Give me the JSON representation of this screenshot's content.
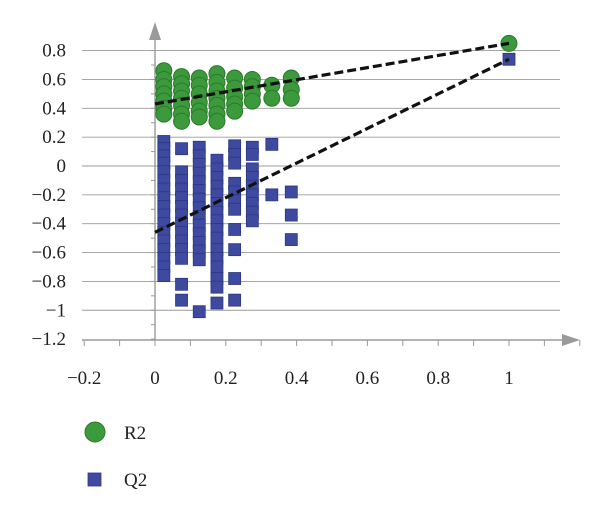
{
  "chart_data": {
    "type": "scatter",
    "title": "",
    "xlabel": "",
    "ylabel": "",
    "xlim": [
      -0.2,
      1.2
    ],
    "ylim": [
      -1.2,
      0.9
    ],
    "x_ticks": [
      -0.2,
      0,
      0.2,
      0.4,
      0.6,
      0.8,
      1
    ],
    "x_tick_labels": [
      "−0.2",
      "0",
      "0.2",
      "0.4",
      "0.6",
      "0.8",
      "1"
    ],
    "y_ticks": [
      0.8,
      0.6,
      0.4,
      0.2,
      0,
      -0.2,
      -0.4,
      -0.6,
      -0.8,
      -1,
      -1.2
    ],
    "y_tick_labels": [
      "0.8",
      "0.6",
      "0.4",
      "0.2",
      "0",
      "−0.2",
      "−0.4",
      "−0.6",
      "−0.8",
      "−1",
      "−1.2"
    ],
    "grid": "horizontal only",
    "legend_position": "bottom-left",
    "series": [
      {
        "name": "R2",
        "marker": "circle",
        "color": "#3c9a3c",
        "points": [
          [
            0.025,
            0.66
          ],
          [
            0.025,
            0.6
          ],
          [
            0.025,
            0.55
          ],
          [
            0.025,
            0.5
          ],
          [
            0.025,
            0.45
          ],
          [
            0.025,
            0.4
          ],
          [
            0.025,
            0.36
          ],
          [
            0.075,
            0.62
          ],
          [
            0.075,
            0.57
          ],
          [
            0.075,
            0.52
          ],
          [
            0.075,
            0.47
          ],
          [
            0.075,
            0.42
          ],
          [
            0.075,
            0.36
          ],
          [
            0.075,
            0.31
          ],
          [
            0.125,
            0.61
          ],
          [
            0.125,
            0.56
          ],
          [
            0.125,
            0.5
          ],
          [
            0.125,
            0.44
          ],
          [
            0.125,
            0.38
          ],
          [
            0.125,
            0.34
          ],
          [
            0.175,
            0.64
          ],
          [
            0.175,
            0.58
          ],
          [
            0.175,
            0.52
          ],
          [
            0.175,
            0.47
          ],
          [
            0.175,
            0.42
          ],
          [
            0.175,
            0.36
          ],
          [
            0.175,
            0.31
          ],
          [
            0.225,
            0.61
          ],
          [
            0.225,
            0.54
          ],
          [
            0.225,
            0.48
          ],
          [
            0.225,
            0.43
          ],
          [
            0.225,
            0.38
          ],
          [
            0.275,
            0.6
          ],
          [
            0.275,
            0.55
          ],
          [
            0.275,
            0.5
          ],
          [
            0.275,
            0.45
          ],
          [
            0.33,
            0.56
          ],
          [
            0.33,
            0.47
          ],
          [
            0.385,
            0.61
          ],
          [
            0.385,
            0.53
          ],
          [
            0.385,
            0.47
          ],
          [
            1.0,
            0.85
          ]
        ],
        "regression": {
          "x": [
            0,
            1
          ],
          "y": [
            0.43,
            0.85
          ]
        }
      },
      {
        "name": "Q2",
        "marker": "square",
        "color": "#3d4aa0",
        "points": [
          [
            0.025,
            0.17
          ],
          [
            0.025,
            0.12
          ],
          [
            0.025,
            0.07
          ],
          [
            0.025,
            0.02
          ],
          [
            0.025,
            -0.04
          ],
          [
            0.025,
            -0.1
          ],
          [
            0.025,
            -0.16
          ],
          [
            0.025,
            -0.22
          ],
          [
            0.025,
            -0.28
          ],
          [
            0.025,
            -0.34
          ],
          [
            0.025,
            -0.4
          ],
          [
            0.025,
            -0.46
          ],
          [
            0.025,
            -0.52
          ],
          [
            0.025,
            -0.58
          ],
          [
            0.025,
            -0.64
          ],
          [
            0.025,
            -0.7
          ],
          [
            0.025,
            -0.76
          ],
          [
            0.075,
            0.12
          ],
          [
            0.075,
            -0.04
          ],
          [
            0.075,
            -0.1
          ],
          [
            0.075,
            -0.16
          ],
          [
            0.075,
            -0.22
          ],
          [
            0.075,
            -0.28
          ],
          [
            0.075,
            -0.34
          ],
          [
            0.075,
            -0.4
          ],
          [
            0.075,
            -0.46
          ],
          [
            0.075,
            -0.52
          ],
          [
            0.075,
            -0.58
          ],
          [
            0.075,
            -0.64
          ],
          [
            0.075,
            -0.82
          ],
          [
            0.075,
            -0.93
          ],
          [
            0.125,
            0.13
          ],
          [
            0.125,
            0.07
          ],
          [
            0.125,
            0.01
          ],
          [
            0.125,
            -0.05
          ],
          [
            0.125,
            -0.11
          ],
          [
            0.125,
            -0.17
          ],
          [
            0.125,
            -0.23
          ],
          [
            0.125,
            -0.29
          ],
          [
            0.125,
            -0.35
          ],
          [
            0.125,
            -0.41
          ],
          [
            0.125,
            -0.47
          ],
          [
            0.125,
            -0.53
          ],
          [
            0.125,
            -0.59
          ],
          [
            0.125,
            -0.65
          ],
          [
            0.125,
            -1.01
          ],
          [
            0.175,
            0.04
          ],
          [
            0.175,
            -0.02
          ],
          [
            0.175,
            -0.08
          ],
          [
            0.175,
            -0.14
          ],
          [
            0.175,
            -0.2
          ],
          [
            0.175,
            -0.26
          ],
          [
            0.175,
            -0.32
          ],
          [
            0.175,
            -0.38
          ],
          [
            0.175,
            -0.44
          ],
          [
            0.175,
            -0.5
          ],
          [
            0.175,
            -0.58
          ],
          [
            0.175,
            -0.64
          ],
          [
            0.175,
            -0.7
          ],
          [
            0.175,
            -0.78
          ],
          [
            0.175,
            -0.84
          ],
          [
            0.175,
            -0.95
          ],
          [
            0.225,
            0.14
          ],
          [
            0.225,
            0.08
          ],
          [
            0.225,
            0.02
          ],
          [
            0.225,
            -0.12
          ],
          [
            0.225,
            -0.18
          ],
          [
            0.225,
            -0.24
          ],
          [
            0.225,
            -0.3
          ],
          [
            0.225,
            -0.44
          ],
          [
            0.225,
            -0.58
          ],
          [
            0.225,
            -0.78
          ],
          [
            0.225,
            -0.93
          ],
          [
            0.275,
            0.13
          ],
          [
            0.275,
            0.08
          ],
          [
            0.275,
            -0.02
          ],
          [
            0.275,
            -0.08
          ],
          [
            0.275,
            -0.14
          ],
          [
            0.275,
            -0.2
          ],
          [
            0.275,
            -0.26
          ],
          [
            0.275,
            -0.32
          ],
          [
            0.275,
            -0.38
          ],
          [
            0.33,
            0.15
          ],
          [
            0.33,
            -0.2
          ],
          [
            0.385,
            -0.18
          ],
          [
            0.385,
            -0.34
          ],
          [
            0.385,
            -0.51
          ],
          [
            1.0,
            0.74
          ]
        ],
        "regression": {
          "x": [
            0,
            1
          ],
          "y": [
            -0.46,
            0.74
          ]
        }
      }
    ]
  }
}
